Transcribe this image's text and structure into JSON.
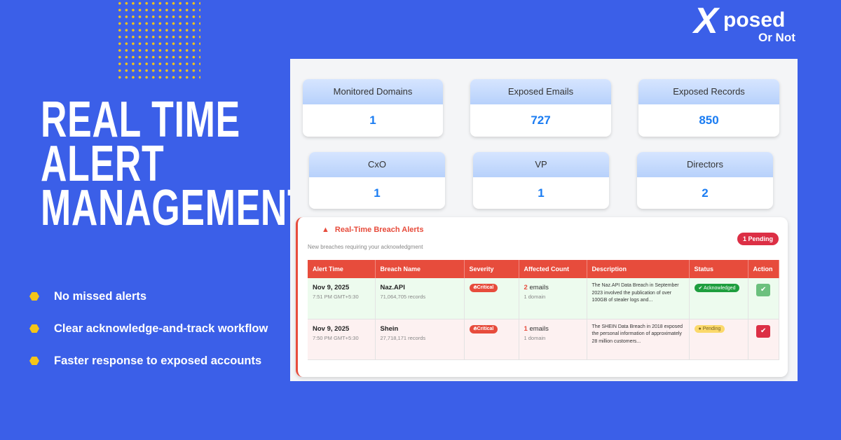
{
  "hero": {
    "title_lines": [
      "REAL TIME",
      "ALERT",
      "MANAGEMENT"
    ],
    "bullets": [
      "No missed alerts",
      "Clear acknowledge-and-track workflow",
      "Faster response to exposed accounts"
    ]
  },
  "logo": {
    "x": "X",
    "posed": "posed",
    "or_not": "Or Not"
  },
  "stats": [
    {
      "label": "Monitored Domains",
      "value": "1"
    },
    {
      "label": "Exposed Emails",
      "value": "727"
    },
    {
      "label": "Exposed Records",
      "value": "850"
    },
    {
      "label": "CxO",
      "value": "1"
    },
    {
      "label": "VP",
      "value": "1"
    },
    {
      "label": "Directors",
      "value": "2"
    }
  ],
  "alerts": {
    "title": "Real-Time Breach Alerts",
    "subtitle": "New breaches requiring your acknowledgment",
    "pending_badge": "1 Pending",
    "columns": [
      "Alert Time",
      "Breach Name",
      "Severity",
      "Affected Count",
      "Description",
      "Status",
      "Action"
    ],
    "rows": [
      {
        "date": "Nov 9, 2025",
        "time": "7:51 PM GMT+5:30",
        "name": "Naz.API",
        "records": "71,064,705 records",
        "severity": "Critical",
        "count": "2",
        "count_unit": "emails",
        "domains": "1 domain",
        "description": "The Naz.API Data Breach in September 2023 involved the publication of over 100GB of stealer logs and...",
        "status": "Acknowledged"
      },
      {
        "date": "Nov 9, 2025",
        "time": "7:50 PM GMT+5:30",
        "name": "Shein",
        "records": "27,718,171 records",
        "severity": "Critical",
        "count": "1",
        "count_unit": "emails",
        "domains": "1 domain",
        "description": "The SHEIN Data Breach in 2018 exposed the personal information of approximately 28 million customers...",
        "status": "Pending"
      }
    ]
  },
  "colors": {
    "background": "#3b5fe8",
    "accent": "#f5c518",
    "alert": "#e74c3c",
    "value": "#1a7cf2"
  }
}
